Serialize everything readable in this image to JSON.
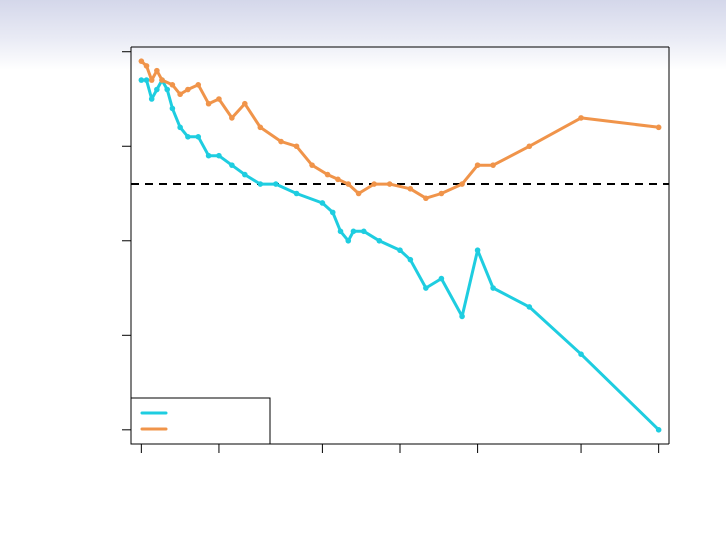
{
  "chart_data": {
    "type": "line",
    "title": "",
    "xlabel": "",
    "ylabel": "",
    "xlim": [
      -0.2,
      10.2
    ],
    "ylim": [
      -0.15,
      4.05
    ],
    "x_ticks": [
      0,
      1.5,
      3.5,
      5,
      6.5,
      8.5,
      10
    ],
    "y_ticks": [
      0,
      1,
      2,
      3,
      4
    ],
    "reference_line": {
      "y": 2.6,
      "style": "dashed",
      "color": "#000000"
    },
    "grid": false,
    "legend_position": "bottom-left",
    "series": [
      {
        "color": "#1ecde0",
        "x": [
          0,
          0.1,
          0.2,
          0.3,
          0.4,
          0.5,
          0.6,
          0.75,
          0.9,
          1.1,
          1.3,
          1.5,
          1.75,
          2.0,
          2.3,
          2.6,
          3.0,
          3.5,
          3.7,
          3.85,
          4.0,
          4.1,
          4.3,
          4.6,
          5.0,
          5.2,
          5.5,
          5.8,
          6.2,
          6.5,
          6.8,
          7.5,
          8.5,
          10
        ],
        "y": [
          3.7,
          3.7,
          3.5,
          3.6,
          3.7,
          3.6,
          3.4,
          3.2,
          3.1,
          3.1,
          2.9,
          2.9,
          2.8,
          2.7,
          2.6,
          2.6,
          2.5,
          2.4,
          2.3,
          2.1,
          2.0,
          2.1,
          2.1,
          2.0,
          1.9,
          1.8,
          1.5,
          1.6,
          1.2,
          1.9,
          1.5,
          1.3,
          0.8,
          0.0
        ]
      },
      {
        "color": "#f0944a",
        "x": [
          0,
          0.1,
          0.2,
          0.3,
          0.4,
          0.6,
          0.75,
          0.9,
          1.1,
          1.3,
          1.5,
          1.75,
          2.0,
          2.3,
          2.7,
          3.0,
          3.3,
          3.6,
          3.8,
          4.0,
          4.2,
          4.5,
          4.8,
          5.2,
          5.5,
          5.8,
          6.2,
          6.5,
          6.8,
          7.5,
          8.5,
          10
        ],
        "y": [
          3.9,
          3.85,
          3.7,
          3.8,
          3.7,
          3.65,
          3.55,
          3.6,
          3.65,
          3.45,
          3.5,
          3.3,
          3.45,
          3.2,
          3.05,
          3.0,
          2.8,
          2.7,
          2.65,
          2.6,
          2.5,
          2.6,
          2.6,
          2.55,
          2.45,
          2.5,
          2.6,
          2.8,
          2.8,
          3.0,
          3.3,
          3.2
        ]
      }
    ]
  }
}
